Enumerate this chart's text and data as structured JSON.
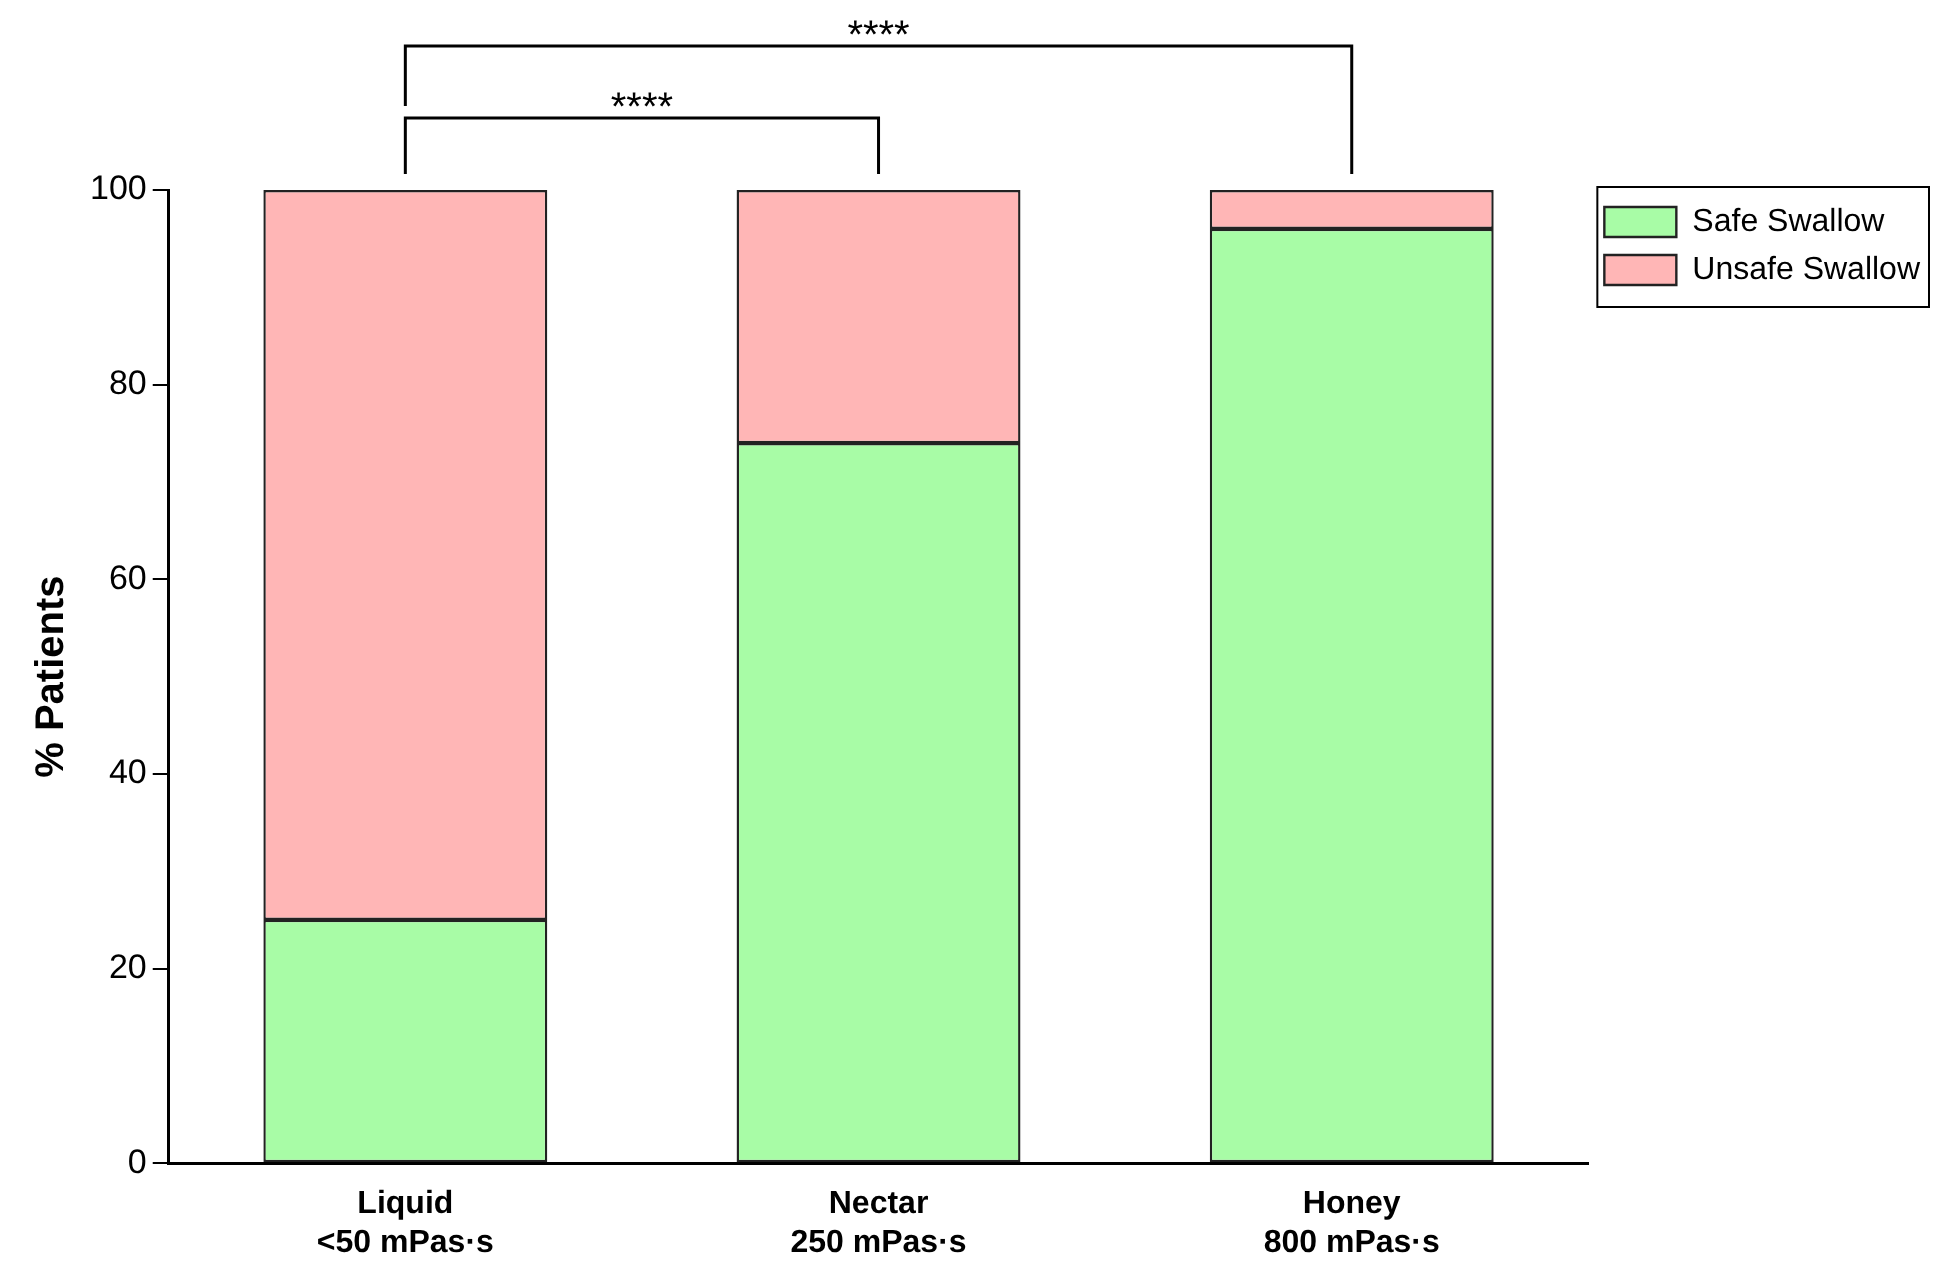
{
  "chart_data": {
    "type": "bar",
    "stacked": true,
    "ylabel": "% Patients",
    "categories": [
      "Liquid\n<50 mPas·s",
      "Nectar\n250 mPas·s",
      "Honey\n800 mPas·s"
    ],
    "series": [
      {
        "name": "Safe Swallow",
        "color": "#a8fca6",
        "values": [
          25,
          74,
          96
        ]
      },
      {
        "name": "Unsafe Swallow",
        "color": "#ffb6b6",
        "values": [
          75,
          26,
          4
        ]
      }
    ],
    "ylim": [
      0,
      100
    ],
    "yticks": [
      0,
      20,
      40,
      60,
      80,
      100
    ],
    "grid": false,
    "legend": "top right",
    "annotations": [
      "****",
      "****"
    ]
  }
}
